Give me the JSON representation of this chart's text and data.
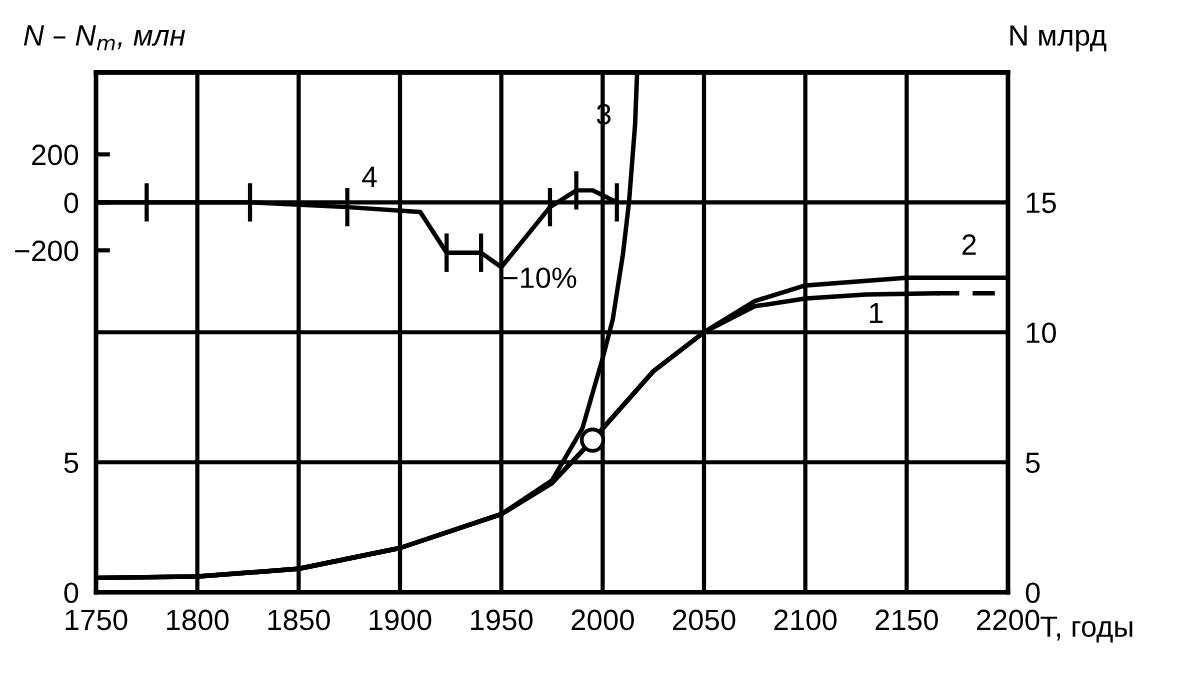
{
  "chart_data": {
    "type": "line",
    "xlabel": "T, годы",
    "ylabel": "N – N$_{m}$, млн",
    "y2label": "N млрд",
    "xlim": [
      1750,
      2200
    ],
    "xticks": [
      1750,
      1800,
      1850,
      1900,
      1950,
      2000,
      2050,
      2100,
      2150,
      2200
    ],
    "ylim": [
      0,
      20
    ],
    "yticks": [
      0,
      5
    ],
    "y2lim": [
      0,
      20
    ],
    "y2ticks": [
      0,
      5,
      10,
      15
    ],
    "y3lim": [
      -1625,
      542
    ],
    "y3ticks": [
      {
        "value": -200,
        "label": "−200"
      },
      0,
      200
    ],
    "grid": true,
    "legend": false,
    "line_style": "solid",
    "marker": "none",
    "annotations": [
      "−10%"
    ],
    "series": [
      {
        "name": "1",
        "color": "#000000",
        "x": [
          1750,
          1800,
          1850,
          1900,
          1950,
          1975,
          1995,
          2000,
          2025,
          2050,
          2075,
          2100,
          2130,
          2165
        ],
        "values": [
          0.55,
          0.6,
          0.9,
          1.7,
          3.0,
          4.2,
          5.85,
          6.3,
          8.5,
          10.0,
          11.0,
          11.3,
          11.45,
          11.5
        ]
      },
      {
        "line_style": "dashed",
        "color": "#000000",
        "x": [
          2165,
          2200
        ],
        "values": [
          11.5,
          11.5
        ]
      },
      {
        "name": "2",
        "color": "#000000",
        "x": [
          1750,
          1800,
          1850,
          1900,
          1950,
          1975,
          1995,
          2000,
          2025,
          2050,
          2075,
          2100,
          2150,
          2200
        ],
        "values": [
          0.55,
          0.6,
          0.9,
          1.7,
          3.0,
          4.2,
          5.85,
          6.3,
          8.5,
          10.0,
          11.2,
          11.8,
          12.1,
          12.1
        ]
      },
      {
        "name": "3",
        "color": "#000000",
        "x": [
          1750,
          1800,
          1850,
          1900,
          1950,
          1975,
          1990,
          2000,
          2005,
          2010,
          2013,
          2016,
          2017
        ],
        "values": [
          0.55,
          0.6,
          0.9,
          1.7,
          3.0,
          4.3,
          6.3,
          9.0,
          10.5,
          13.0,
          15.0,
          18.0,
          20.0
        ]
      },
      {
        "type": "scatter",
        "marker": "circle",
        "color": "#000000",
        "x": [
          1995
        ],
        "values": [
          5.85
        ]
      },
      {
        "name": "4",
        "axis": "y3",
        "color": "#000000",
        "x": [
          1750,
          1775,
          1826,
          1874,
          1910,
          1923,
          1940,
          1950,
          1974,
          1987,
          1995,
          2007
        ],
        "values": [
          0,
          0,
          0,
          -20,
          -40,
          -210,
          -210,
          -270,
          -20,
          50,
          50,
          0
        ],
        "errors": [
          null,
          80,
          80,
          80,
          null,
          80,
          80,
          null,
          80,
          80,
          null,
          80
        ]
      }
    ]
  }
}
